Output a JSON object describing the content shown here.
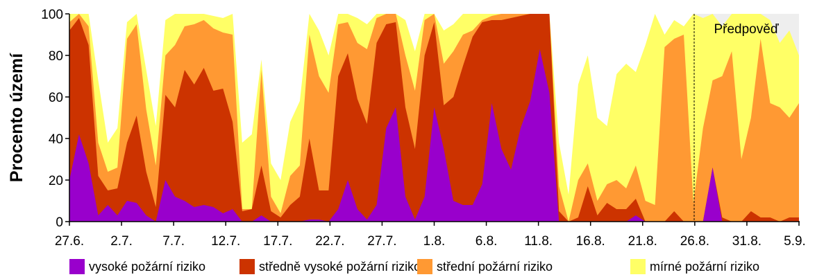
{
  "chart_data": {
    "type": "area",
    "stacking": "cumulative",
    "ylabel": "Procento území",
    "ylim": [
      0,
      100
    ],
    "yticks": [
      0,
      20,
      40,
      60,
      80,
      100
    ],
    "x_start": "27.6.",
    "x_end": "5.9.",
    "xticks": [
      "27.6.",
      "2.7.",
      "7.7.",
      "12.7.",
      "17.7.",
      "22.7.",
      "27.7.",
      "1.8.",
      "6.8.",
      "11.8.",
      "16.8.",
      "21.8.",
      "26.8.",
      "31.8.",
      "5.9."
    ],
    "forecast": {
      "label": "Předpověď",
      "start": "26.8.",
      "end": "5.9."
    },
    "legend_position": "bottom",
    "series": [
      {
        "name": "vysoké požární riziko",
        "color": "#9900cc",
        "values": [
          20,
          42,
          28,
          3,
          8,
          3,
          10,
          9,
          3,
          0,
          20,
          12,
          10,
          7,
          8,
          7,
          4,
          6,
          0,
          0,
          3,
          0,
          0,
          0,
          0,
          1,
          1,
          0,
          6,
          20,
          6,
          1,
          8,
          45,
          55,
          12,
          1,
          12,
          55,
          35,
          10,
          8,
          8,
          18,
          57,
          35,
          25,
          45,
          58,
          83,
          62,
          0,
          0,
          0,
          0,
          0,
          0,
          0,
          0,
          3,
          0,
          0,
          0,
          0,
          0,
          0,
          0,
          26,
          0,
          0,
          0,
          0,
          0,
          0,
          0,
          0,
          0
        ]
      },
      {
        "name": "středně vysoké požární riziko",
        "color": "#cc3300",
        "values": [
          92,
          98,
          85,
          22,
          15,
          16,
          38,
          51,
          24,
          7,
          61,
          55,
          73,
          66,
          74,
          63,
          64,
          48,
          5,
          6,
          27,
          5,
          2,
          8,
          12,
          40,
          15,
          15,
          70,
          81,
          59,
          47,
          86,
          95,
          96,
          55,
          35,
          80,
          96,
          56,
          60,
          75,
          89,
          96,
          97,
          97,
          98,
          99,
          100,
          100,
          100,
          5,
          0,
          2,
          17,
          3,
          9,
          6,
          6,
          11,
          0,
          0,
          0,
          5,
          0,
          0,
          0,
          26,
          2,
          0,
          0,
          5,
          2,
          2,
          0,
          2,
          2
        ]
      },
      {
        "name": "střední požární riziko",
        "color": "#ff9933",
        "values": [
          96,
          100,
          94,
          38,
          24,
          26,
          88,
          95,
          54,
          27,
          80,
          85,
          94,
          95,
          97,
          93,
          91,
          90,
          6,
          6,
          73,
          12,
          4,
          22,
          27,
          90,
          70,
          62,
          95,
          96,
          86,
          83,
          98,
          100,
          100,
          80,
          63,
          97,
          100,
          76,
          82,
          90,
          92,
          97,
          99,
          100,
          100,
          100,
          100,
          100,
          100,
          17,
          0,
          20,
          28,
          10,
          18,
          20,
          16,
          27,
          10,
          8,
          84,
          88,
          90,
          9,
          45,
          68,
          70,
          82,
          30,
          50,
          88,
          57,
          55,
          50,
          57
        ]
      },
      {
        "name": "mírné požární riziko",
        "color": "#ffff66",
        "values": [
          100,
          100,
          100,
          68,
          38,
          45,
          96,
          100,
          73,
          46,
          97,
          100,
          100,
          100,
          100,
          99,
          98,
          100,
          38,
          42,
          78,
          28,
          20,
          48,
          58,
          100,
          92,
          80,
          100,
          100,
          98,
          95,
          100,
          100,
          100,
          97,
          82,
          100,
          100,
          92,
          95,
          100,
          100,
          100,
          100,
          100,
          100,
          100,
          100,
          100,
          100,
          38,
          13,
          66,
          80,
          50,
          46,
          71,
          76,
          72,
          85,
          100,
          90,
          97,
          94,
          100,
          98,
          100,
          94,
          100,
          100,
          100,
          100,
          97,
          86,
          92,
          80
        ]
      }
    ]
  }
}
